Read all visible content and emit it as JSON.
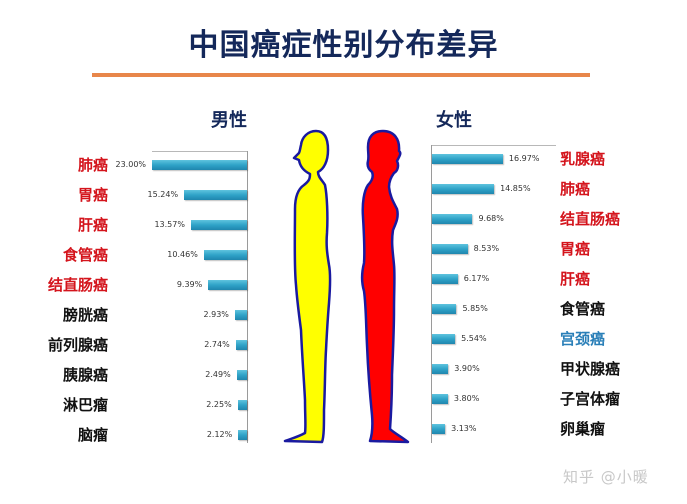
{
  "title": "中国癌症性别分布差异",
  "watermark": "知乎 @小暖",
  "colors": {
    "title": "#14285a",
    "rule": "#e8864a",
    "bar": "#2fa3c8",
    "highlight_red": "#d4141c",
    "highlight_blue": "#2a7fb8",
    "normal": "#111111",
    "male_figure": "#ffff00",
    "female_figure": "#ff0000",
    "figure_outline": "#1a1aa0"
  },
  "male": {
    "label": "男性",
    "categories": [
      "肺癌",
      "胃癌",
      "肝癌",
      "食管癌",
      "结直肠癌",
      "膀胱癌",
      "前列腺癌",
      "胰腺癌",
      "淋巴瘤",
      "脑瘤"
    ],
    "value_labels": [
      "23.00%",
      "15.24%",
      "13.57%",
      "10.46%",
      "9.39%",
      "2.93%",
      "2.74%",
      "2.49%",
      "2.25%",
      "2.12%"
    ],
    "label_colors": [
      "red",
      "red",
      "red",
      "red",
      "red",
      "black",
      "black",
      "black",
      "black",
      "black"
    ]
  },
  "female": {
    "label": "女性",
    "categories": [
      "乳腺癌",
      "肺癌",
      "结直肠癌",
      "胃癌",
      "肝癌",
      "食管癌",
      "宫颈癌",
      "甲状腺癌",
      "子宫体瘤",
      "卵巢瘤"
    ],
    "value_labels": [
      "16.97%",
      "14.85%",
      "9.68%",
      "8.53%",
      "6.17%",
      "5.85%",
      "5.54%",
      "3.90%",
      "3.80%",
      "3.13%"
    ],
    "label_colors": [
      "red",
      "red",
      "red",
      "red",
      "red",
      "black",
      "blue",
      "black",
      "black",
      "black"
    ]
  },
  "chart_data": [
    {
      "type": "bar",
      "orientation": "horizontal",
      "title": "男性",
      "categories": [
        "肺癌",
        "胃癌",
        "肝癌",
        "食管癌",
        "结直肠癌",
        "膀胱癌",
        "前列腺癌",
        "胰腺癌",
        "淋巴瘤",
        "脑瘤"
      ],
      "values": [
        23.0,
        15.24,
        13.57,
        10.46,
        9.39,
        2.93,
        2.74,
        2.49,
        2.25,
        2.12
      ],
      "unit": "%",
      "direction": "right-to-left",
      "grid": false,
      "legend": "none"
    },
    {
      "type": "bar",
      "orientation": "horizontal",
      "title": "女性",
      "categories": [
        "乳腺癌",
        "肺癌",
        "结直肠癌",
        "胃癌",
        "肝癌",
        "食管癌",
        "宫颈癌",
        "甲状腺癌",
        "子宫体瘤",
        "卵巢瘤"
      ],
      "values": [
        16.97,
        14.85,
        9.68,
        8.53,
        6.17,
        5.85,
        5.54,
        3.9,
        3.8,
        3.13
      ],
      "unit": "%",
      "direction": "left-to-right",
      "grid": false,
      "legend": "none"
    }
  ]
}
